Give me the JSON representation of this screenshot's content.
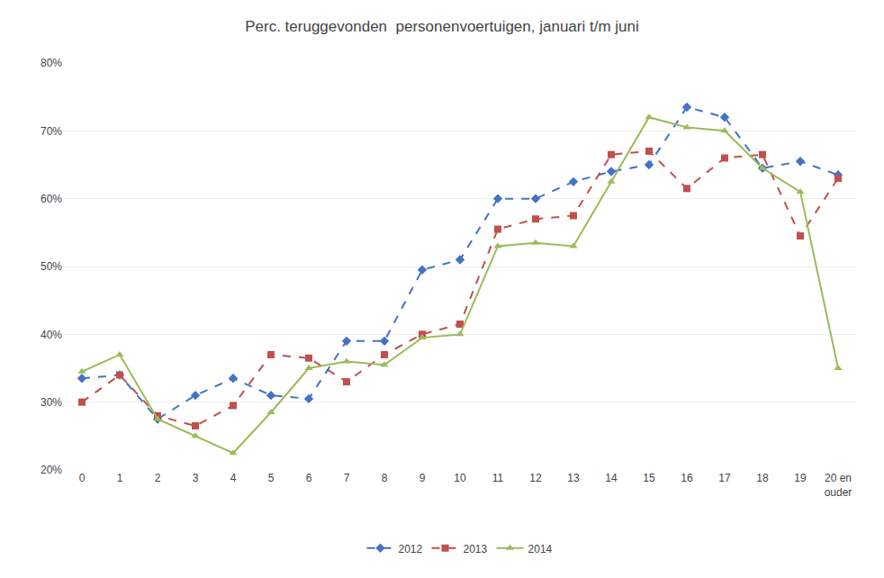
{
  "chart_data": {
    "type": "line",
    "title": "Perc. teruggevonden  personenvoertuigen, januari t/m juni",
    "categories": [
      "0",
      "1",
      "2",
      "3",
      "4",
      "5",
      "6",
      "7",
      "8",
      "9",
      "10",
      "11",
      "12",
      "13",
      "14",
      "15",
      "16",
      "17",
      "18",
      "19",
      "20 en\nouder"
    ],
    "series": [
      {
        "name": "2012",
        "color": "#4472C4",
        "marker": "diamond",
        "line_style": "dashed",
        "values": [
          0.335,
          0.34,
          0.275,
          0.31,
          0.335,
          0.31,
          0.305,
          0.39,
          0.39,
          0.495,
          0.51,
          0.6,
          0.6,
          0.625,
          0.64,
          0.65,
          0.735,
          0.72,
          0.645,
          0.655,
          0.635
        ]
      },
      {
        "name": "2013",
        "color": "#C0504D",
        "marker": "square",
        "line_style": "dashed",
        "values": [
          0.3,
          0.34,
          0.28,
          0.265,
          0.295,
          0.37,
          0.365,
          0.33,
          0.37,
          0.4,
          0.415,
          0.555,
          0.57,
          0.575,
          0.665,
          0.67,
          0.615,
          0.66,
          0.665,
          0.545,
          0.63
        ]
      },
      {
        "name": "2014",
        "color": "#9BBB59",
        "marker": "triangle",
        "line_style": "solid",
        "values": [
          0.345,
          0.37,
          0.275,
          0.25,
          0.225,
          0.285,
          0.35,
          0.36,
          0.355,
          0.395,
          0.4,
          0.53,
          0.535,
          0.53,
          0.625,
          0.72,
          0.705,
          0.7,
          0.645,
          0.61,
          0.35
        ]
      }
    ],
    "ylim": [
      0.2,
      0.8
    ],
    "yticks": [
      {
        "value": 0.2,
        "label": "20%"
      },
      {
        "value": 0.3,
        "label": "30%"
      },
      {
        "value": 0.4,
        "label": "40%"
      },
      {
        "value": 0.5,
        "label": "50%"
      },
      {
        "value": 0.6,
        "label": "60%"
      },
      {
        "value": 0.7,
        "label": "70%"
      },
      {
        "value": 0.8,
        "label": "80%"
      }
    ],
    "grid": true,
    "legend": "bottom"
  }
}
